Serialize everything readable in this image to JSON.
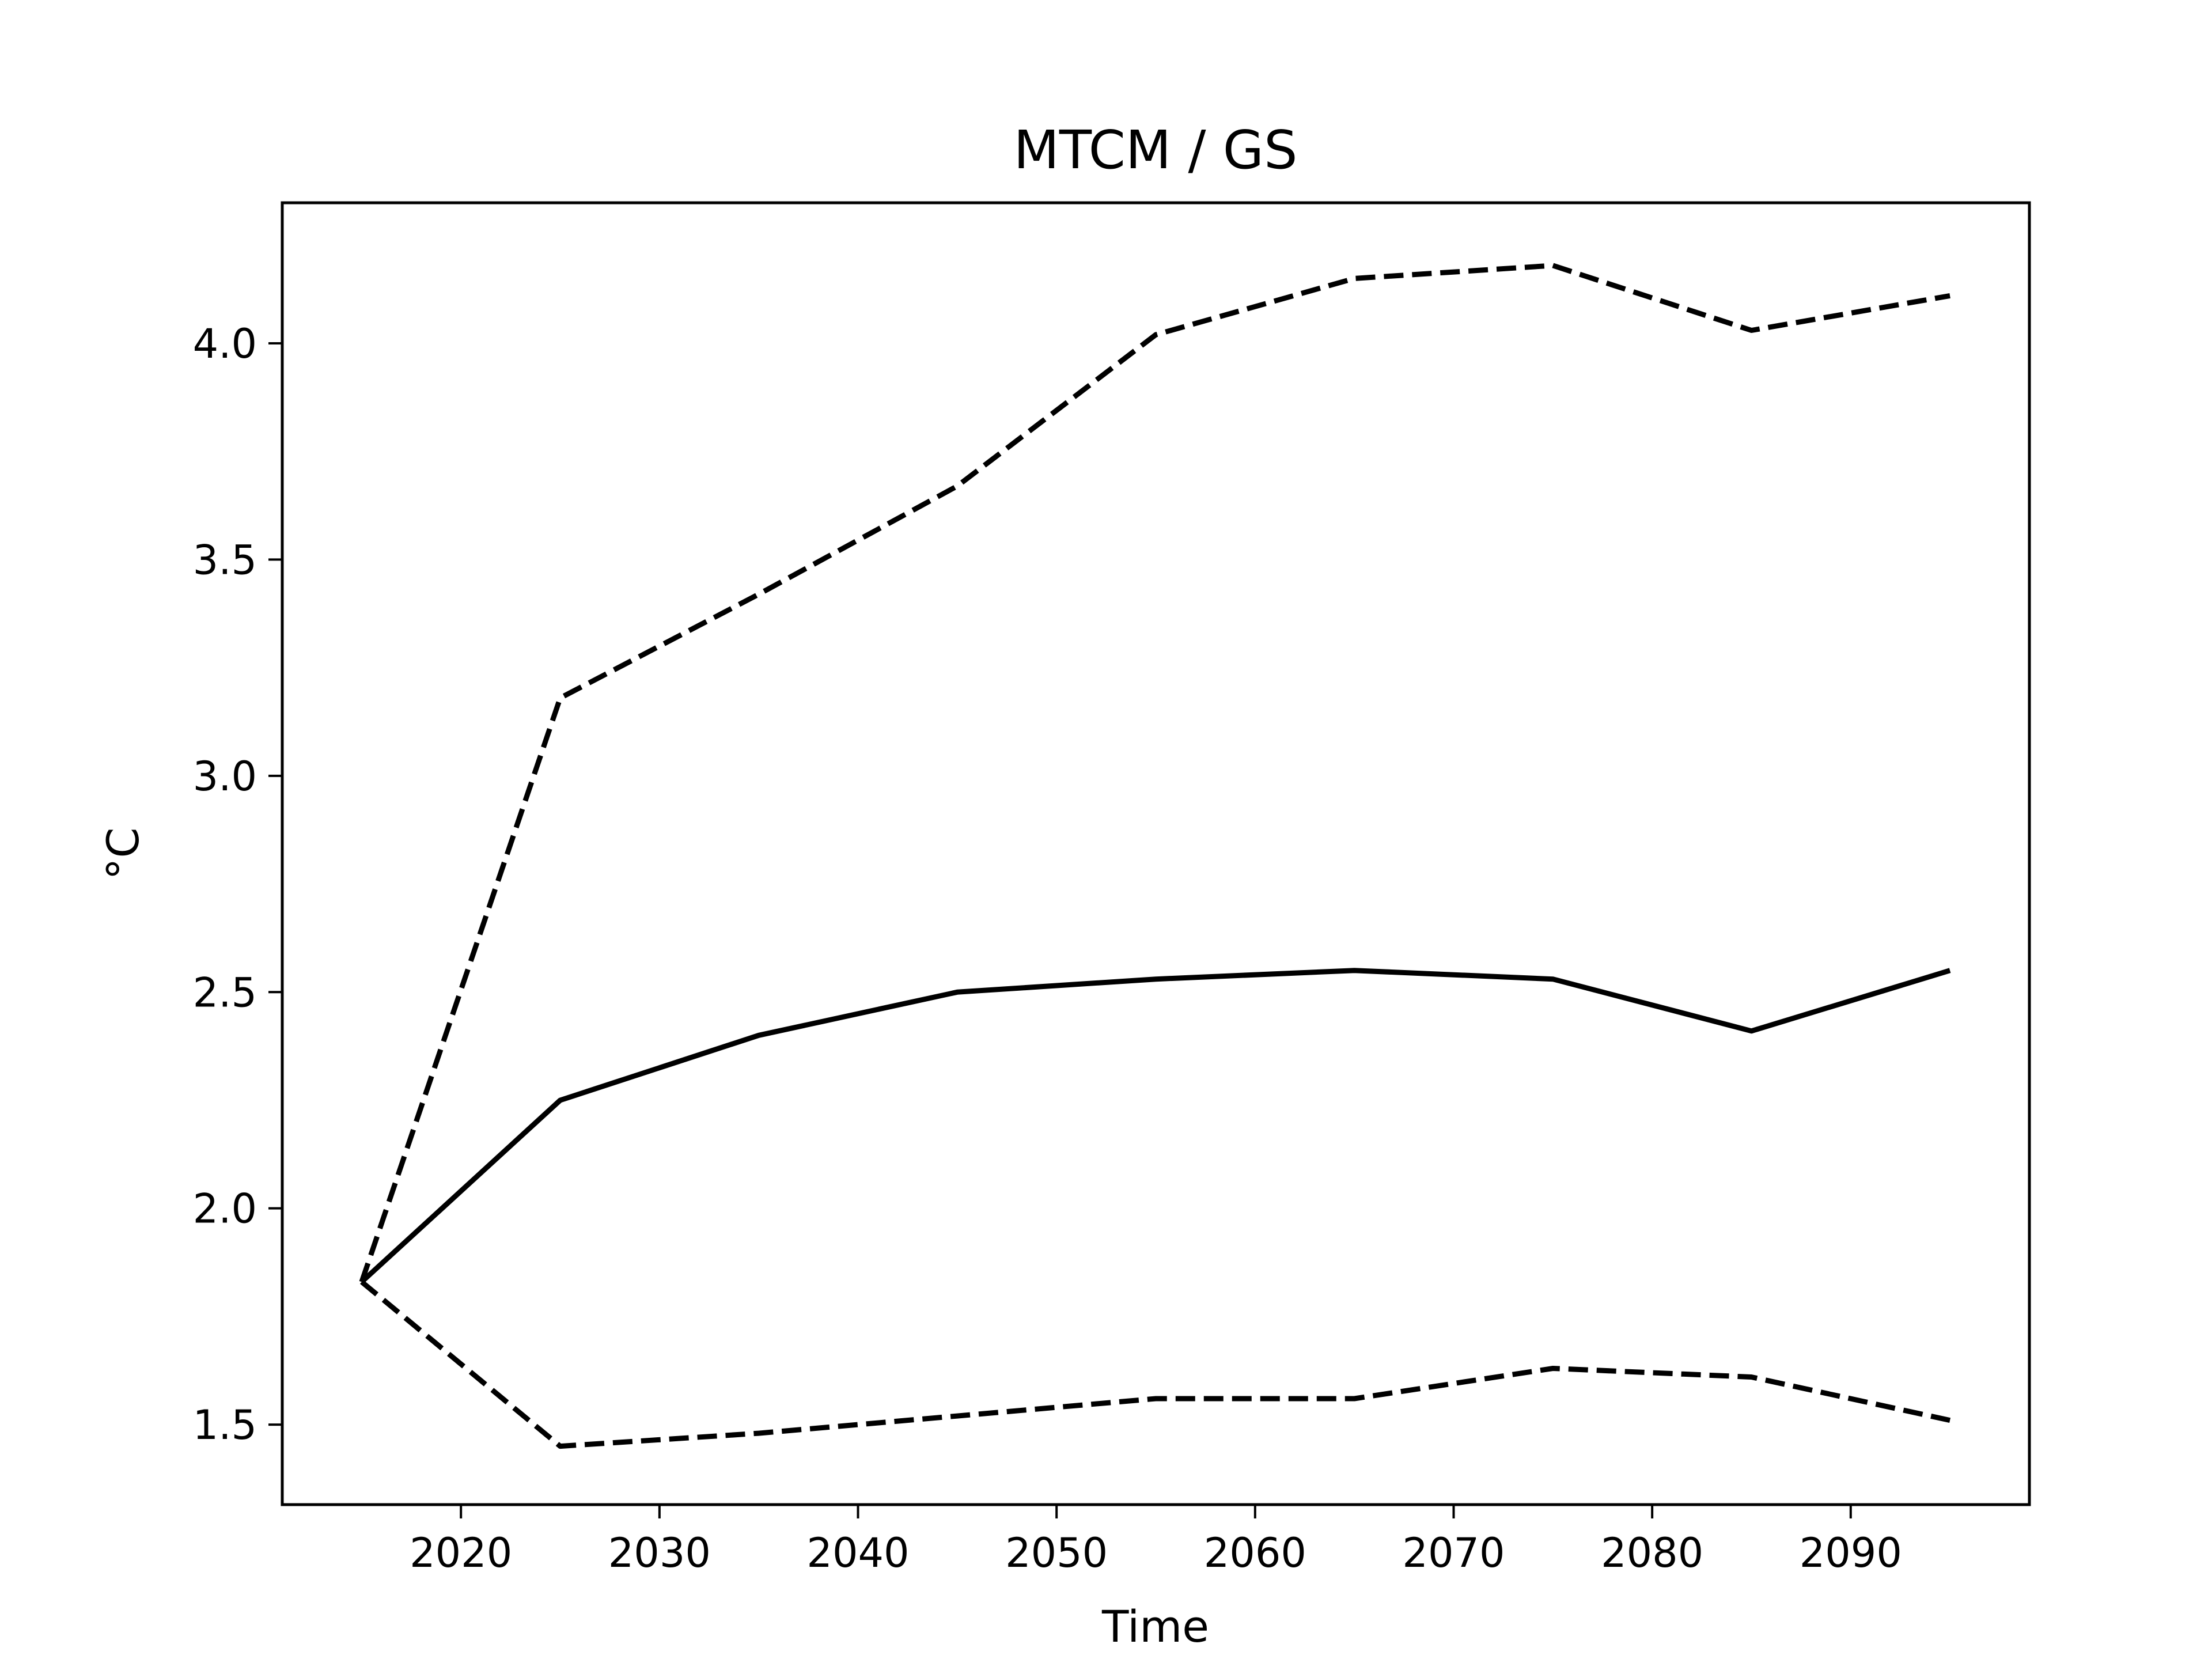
{
  "chart_data": {
    "type": "line",
    "title": "MTCM / GS",
    "xlabel": "Time",
    "ylabel": "°C",
    "xlim": [
      2011,
      2099
    ],
    "ylim": [
      1.315,
      4.325
    ],
    "xticks": [
      2020,
      2030,
      2040,
      2050,
      2060,
      2070,
      2080,
      2090
    ],
    "yticks": [
      1.5,
      2.0,
      2.5,
      3.0,
      3.5,
      4.0
    ],
    "xtick_labels": [
      "2020",
      "2030",
      "2040",
      "2050",
      "2060",
      "2070",
      "2080",
      "2090"
    ],
    "ytick_labels": [
      "1.5",
      "2.0",
      "2.5",
      "3.0",
      "3.5",
      "4.0"
    ],
    "grid": false,
    "x": [
      2015,
      2025,
      2035,
      2045,
      2055,
      2065,
      2075,
      2085,
      2095
    ],
    "series": [
      {
        "values": [
          1.83,
          3.18,
          3.42,
          3.67,
          4.02,
          4.15,
          4.18,
          4.03,
          4.11
        ],
        "color": "#000000",
        "style": "dashed"
      },
      {
        "values": [
          1.83,
          2.25,
          2.4,
          2.5,
          2.53,
          2.55,
          2.53,
          2.41,
          2.55
        ],
        "color": "#000000",
        "style": "solid"
      },
      {
        "values": [
          1.83,
          1.45,
          1.48,
          1.52,
          1.56,
          1.56,
          1.63,
          1.61,
          1.51
        ],
        "color": "#000000",
        "style": "dashed"
      }
    ]
  }
}
